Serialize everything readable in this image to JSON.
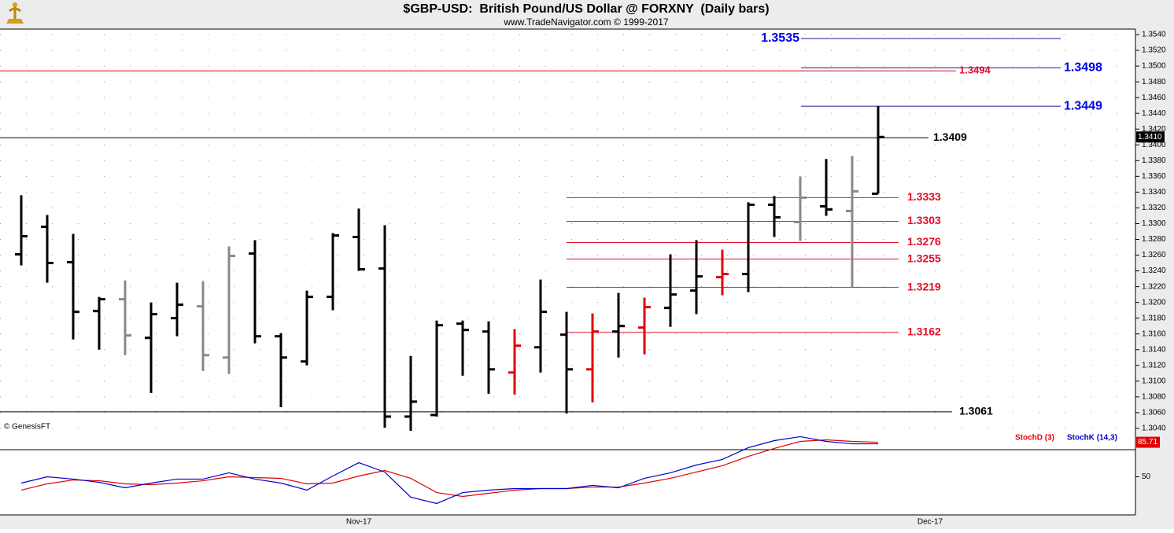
{
  "chart_data": [
    {
      "type": "ohlc",
      "title": "$GBP-USD:  British Pound/US Dollar @ FORXNY  (Daily bars)",
      "subtitle": "www.TradeNavigator.com © 1999-2017",
      "credit": "© GenesisFT",
      "categories": [
        null,
        null,
        null,
        null,
        null,
        null,
        null,
        null,
        null,
        null,
        null,
        null,
        null,
        "Nov-17",
        null,
        null,
        null,
        null,
        null,
        null,
        null,
        null,
        null,
        null,
        null,
        null,
        null,
        null,
        null,
        null,
        null,
        null,
        null,
        null,
        null,
        "Dec-17"
      ],
      "series": [
        {
          "open": [
            1.3261,
            1.3296,
            1.3251,
            1.3189,
            1.3204,
            1.3155,
            1.318,
            1.3195,
            1.313,
            1.3262,
            1.3157,
            1.3125,
            1.3207,
            1.3283,
            1.3243,
            1.3055,
            1.3057,
            1.3173,
            1.3163,
            1.3111,
            1.3143,
            1.3159,
            1.3115,
            1.3163,
            1.3168,
            1.3193,
            1.3215,
            1.3232,
            1.3236,
            1.3324,
            1.3302,
            1.3322,
            1.3316,
            1.3338,
            null,
            null
          ],
          "high": [
            1.3336,
            1.3311,
            1.3287,
            1.3207,
            1.3228,
            1.32,
            1.3225,
            1.3227,
            1.3271,
            1.3279,
            1.3161,
            1.3215,
            1.3288,
            1.3319,
            1.3298,
            1.3132,
            1.3177,
            1.3177,
            1.3176,
            1.3166,
            1.3229,
            1.3188,
            1.3186,
            1.3212,
            1.3206,
            1.3261,
            1.3279,
            1.3267,
            1.3327,
            1.3335,
            1.336,
            1.3382,
            1.3386,
            1.3449,
            null,
            null
          ],
          "low": [
            1.3247,
            1.3225,
            1.3153,
            1.314,
            1.3133,
            1.3085,
            1.3157,
            1.3113,
            1.3109,
            1.3148,
            1.3067,
            1.312,
            1.319,
            1.324,
            1.3041,
            1.3037,
            1.3055,
            1.3107,
            1.3084,
            1.3083,
            1.3111,
            1.3059,
            1.3073,
            1.313,
            1.3134,
            1.3169,
            1.3185,
            1.3209,
            1.3213,
            1.3283,
            1.3278,
            1.331,
            1.3219,
            1.3338,
            null,
            null
          ],
          "close": [
            1.3284,
            1.325,
            1.3188,
            1.3204,
            1.3158,
            1.3185,
            1.3197,
            1.3133,
            1.3259,
            1.3157,
            1.313,
            1.3207,
            1.3285,
            1.3242,
            1.3055,
            1.3074,
            1.3171,
            1.3165,
            1.3115,
            1.3145,
            1.3188,
            1.3115,
            1.3163,
            1.317,
            1.3194,
            1.321,
            1.3233,
            1.3236,
            1.3324,
            1.3308,
            1.3333,
            1.3318,
            1.3341,
            1.341,
            null,
            null
          ],
          "colors": [
            "#000",
            "#000",
            "#000",
            "#000",
            "#888",
            "#000",
            "#000",
            "#888",
            "#888",
            "#000",
            "#000",
            "#000",
            "#000",
            "#000",
            "#000",
            "#000",
            "#000",
            "#000",
            "#000",
            "#e00000",
            "#000",
            "#000",
            "#e00000",
            "#000",
            "#e00000",
            "#000",
            "#000",
            "#e00000",
            "#000",
            "#000",
            "#888",
            "#000",
            "#888",
            "#000",
            null,
            null
          ]
        }
      ],
      "ylim": [
        1.3015,
        1.3547
      ],
      "yticks": [
        {
          "value": 1.304,
          "label": "1.3040"
        },
        {
          "value": 1.306,
          "label": "1.3060"
        },
        {
          "value": 1.308,
          "label": "1.3080"
        },
        {
          "value": 1.31,
          "label": "1.3100"
        },
        {
          "value": 1.312,
          "label": "1.3120"
        },
        {
          "value": 1.314,
          "label": "1.3140"
        },
        {
          "value": 1.316,
          "label": "1.3160"
        },
        {
          "value": 1.318,
          "label": "1.3180"
        },
        {
          "value": 1.32,
          "label": "1.3200"
        },
        {
          "value": 1.322,
          "label": "1.3220"
        },
        {
          "value": 1.324,
          "label": "1.3240"
        },
        {
          "value": 1.326,
          "label": "1.3260"
        },
        {
          "value": 1.328,
          "label": "1.3280"
        },
        {
          "value": 1.33,
          "label": "1.3300"
        },
        {
          "value": 1.332,
          "label": "1.3320"
        },
        {
          "value": 1.334,
          "label": "1.3340"
        },
        {
          "value": 1.336,
          "label": "1.3360"
        },
        {
          "value": 1.338,
          "label": "1.3380"
        },
        {
          "value": 1.34,
          "label": "1.3400"
        },
        {
          "value": 1.342,
          "label": "1.3420"
        },
        {
          "value": 1.344,
          "label": "1.3440"
        },
        {
          "value": 1.346,
          "label": "1.3460"
        },
        {
          "value": 1.348,
          "label": "1.3480"
        },
        {
          "value": 1.35,
          "label": "1.3500"
        },
        {
          "value": 1.352,
          "label": "1.3520"
        },
        {
          "value": 1.354,
          "label": "1.3540"
        }
      ],
      "grid": true,
      "levels": [
        {
          "value": 1.3535,
          "color": "#0000ee"
        },
        {
          "value": 1.3498,
          "color": "#0000ee"
        },
        {
          "value": 1.3494,
          "color": "#e0102a"
        },
        {
          "value": 1.3449,
          "color": "#0000ee"
        },
        {
          "value": 1.3409,
          "color": "#000000"
        },
        {
          "value": 1.3333,
          "color": "#e0102a"
        },
        {
          "value": 1.3303,
          "color": "#e0102a"
        },
        {
          "value": 1.3276,
          "color": "#e0102a"
        },
        {
          "value": 1.3255,
          "color": "#e0102a"
        },
        {
          "value": 1.3219,
          "color": "#e0102a"
        },
        {
          "value": 1.3162,
          "color": "#e0102a"
        },
        {
          "value": 1.3061,
          "color": "#000000"
        }
      ],
      "last_price": {
        "value": 1.341,
        "label": "1.3410"
      }
    },
    {
      "type": "line",
      "series": [
        {
          "name": "StochD (3)",
          "color": "#e00000",
          "values": [
            36.2,
            42.7,
            46.7,
            45.9,
            42.7,
            41.9,
            43.5,
            45.9,
            50,
            49.2,
            48.4,
            42.7,
            43.5,
            50.8,
            56.5,
            48.4,
            33.7,
            29.7,
            32.9,
            36.2,
            37.8,
            37.8,
            39.4,
            39.4,
            43.5,
            48.4,
            54.9,
            61.4,
            71.1,
            79.3,
            86.6,
            88.2,
            86.6,
            85.71,
            null,
            null
          ]
        },
        {
          "name": "StochK (14,3)",
          "color": "#0000cc",
          "values": [
            43.5,
            50,
            47.6,
            44.3,
            38.6,
            43.5,
            47.6,
            47.6,
            54.1,
            47.6,
            43.5,
            36.2,
            50.8,
            64.6,
            54.9,
            28.9,
            22.4,
            33.7,
            36.2,
            37.8,
            37.8,
            37.8,
            41.1,
            38.6,
            48.4,
            54.1,
            62.2,
            67.9,
            80.1,
            87.4,
            91.5,
            86.6,
            84.1,
            84.1,
            null,
            null
          ]
        }
      ],
      "ylim": [
        0,
        100
      ],
      "yticks": [
        50
      ],
      "last_value": 85.71
    }
  ]
}
